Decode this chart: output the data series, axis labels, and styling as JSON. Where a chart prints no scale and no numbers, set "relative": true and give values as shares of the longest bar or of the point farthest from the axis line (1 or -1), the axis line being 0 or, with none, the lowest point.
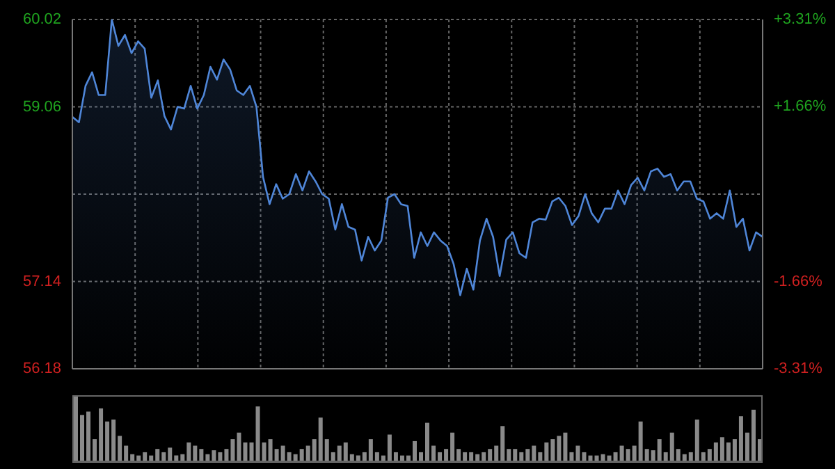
{
  "chart_data": [
    {
      "type": "area",
      "color": "#4f86d8",
      "categories": [
        null,
        null,
        null,
        null,
        null,
        null,
        null,
        null,
        null,
        null,
        null,
        null,
        null,
        null,
        null,
        null,
        null,
        null,
        null,
        null,
        null,
        null,
        null,
        null,
        null,
        null,
        null,
        null,
        null,
        null,
        null,
        null,
        null,
        null,
        null,
        null,
        null,
        null,
        null,
        null,
        null,
        null,
        null,
        null,
        null,
        null,
        null,
        null,
        null,
        null,
        null,
        null,
        null,
        null,
        null,
        null,
        null,
        null,
        null,
        null,
        null,
        null,
        null,
        null,
        null,
        null,
        null,
        null,
        null,
        null,
        null,
        null,
        null,
        null,
        null,
        null,
        null,
        null,
        null,
        null,
        null,
        null,
        null,
        null,
        null,
        null,
        null,
        null,
        null,
        null,
        null,
        null,
        null,
        null,
        null,
        null,
        null,
        null,
        null,
        null,
        null,
        null,
        null,
        null,
        null,
        null
      ],
      "ylim": [
        56.18,
        60.02
      ],
      "yticks": [
        56.18,
        57.14,
        {
          "value": 58.1,
          "label": null
        },
        59.06,
        60.02
      ],
      "y2lim": [
        -3.31,
        3.31
      ],
      "y2ticks": [
        {
          "value": -3.31,
          "label": "-3.31%"
        },
        {
          "value": -1.66,
          "label": "-1.66%"
        },
        {
          "value": 1.66,
          "label": "+1.66%"
        },
        {
          "value": 3.31,
          "label": "+3.31%"
        }
      ],
      "grid": true,
      "values": [
        58.95,
        58.89,
        59.29,
        59.44,
        59.19,
        59.19,
        60.02,
        59.73,
        59.85,
        59.65,
        59.78,
        59.7,
        59.16,
        59.35,
        58.96,
        58.81,
        59.06,
        59.04,
        59.29,
        59.04,
        59.19,
        59.5,
        59.36,
        59.58,
        59.47,
        59.24,
        59.19,
        59.29,
        59.06,
        58.29,
        57.99,
        58.21,
        58.05,
        58.1,
        58.32,
        58.14,
        58.35,
        58.24,
        58.1,
        58.05,
        57.71,
        57.99,
        57.74,
        57.71,
        57.37,
        57.63,
        57.48,
        57.59,
        58.06,
        58.1,
        57.99,
        57.97,
        57.4,
        57.68,
        57.53,
        57.68,
        57.59,
        57.53,
        57.33,
        56.99,
        57.28,
        57.05,
        57.59,
        57.83,
        57.63,
        57.2,
        57.6,
        57.68,
        57.45,
        57.4,
        57.79,
        57.83,
        57.82,
        58.02,
        58.06,
        57.97,
        57.76,
        57.86,
        58.1,
        57.89,
        57.79,
        57.94,
        57.94,
        58.14,
        57.99,
        58.2,
        58.28,
        58.14,
        58.35,
        58.38,
        58.29,
        58.32,
        58.14,
        58.24,
        58.24,
        58.05,
        58.02,
        57.83,
        57.89,
        57.83,
        58.14,
        57.74,
        57.83,
        57.48,
        57.68,
        57.63
      ]
    },
    {
      "type": "bar",
      "relative": true,
      "color": "#8a8a8a",
      "categories": [
        null,
        null,
        null,
        null,
        null,
        null,
        null,
        null,
        null,
        null,
        null,
        null,
        null,
        null,
        null,
        null,
        null,
        null,
        null,
        null,
        null,
        null,
        null,
        null,
        null,
        null,
        null,
        null,
        null,
        null,
        null,
        null,
        null,
        null,
        null,
        null,
        null,
        null,
        null,
        null,
        null,
        null,
        null,
        null,
        null,
        null,
        null,
        null,
        null,
        null,
        null,
        null,
        null,
        null,
        null,
        null,
        null,
        null,
        null,
        null,
        null,
        null,
        null,
        null,
        null,
        null,
        null,
        null,
        null,
        null,
        null,
        null,
        null,
        null,
        null,
        null,
        null,
        null,
        null,
        null,
        null,
        null,
        null,
        null,
        null,
        null,
        null,
        null,
        null,
        null,
        null,
        null,
        null,
        null,
        null,
        null,
        null,
        null,
        null,
        null,
        null,
        null,
        null,
        null,
        null,
        null,
        null,
        null,
        null,
        null
      ],
      "values": [
        1,
        0.72,
        0.77,
        0.35,
        0.82,
        0.62,
        0.65,
        0.4,
        0.25,
        0.12,
        0.1,
        0.15,
        0.1,
        0.2,
        0.15,
        0.22,
        0.1,
        0.12,
        0.3,
        0.25,
        0.2,
        0.12,
        0.18,
        0.15,
        0.2,
        0.35,
        0.45,
        0.3,
        0.3,
        0.85,
        0.3,
        0.35,
        0.2,
        0.25,
        0.15,
        0.12,
        0.2,
        0.25,
        0.35,
        0.68,
        0.35,
        0.15,
        0.25,
        0.3,
        0.12,
        0.1,
        0.15,
        0.35,
        0.15,
        0.1,
        0.42,
        0.15,
        0.1,
        0.1,
        0.32,
        0.15,
        0.6,
        0.25,
        0.15,
        0.2,
        0.45,
        0.2,
        0.15,
        0.15,
        0.12,
        0.15,
        0.2,
        0.25,
        0.55,
        0.2,
        0.2,
        0.15,
        0.2,
        0.25,
        0.15,
        0.3,
        0.35,
        0.4,
        0.45,
        0.15,
        0.25,
        0.15,
        0.1,
        0.1,
        0.12,
        0.1,
        0.15,
        0.25,
        0.2,
        0.25,
        0.62,
        0.2,
        0.18,
        0.35,
        0.15,
        0.45,
        0.2,
        0.12,
        0.15,
        0.65,
        0.15,
        0.2,
        0.3,
        0.38,
        0.3,
        0.35,
        0.7,
        0.45,
        0.8,
        0.35
      ]
    }
  ]
}
